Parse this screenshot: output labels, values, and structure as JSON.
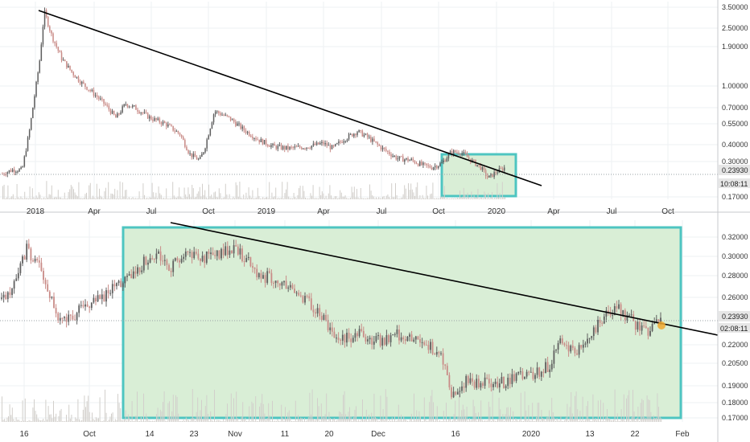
{
  "colors": {
    "background": "#ffffff",
    "grid": "#eef0f3",
    "up_candle": "#5f5f5f",
    "down_candle": "#c98b87",
    "trendline": "#000000",
    "box_border": "#4ec5c1",
    "box_fill": "#d9eed6",
    "volume": "#d2cfcb",
    "price_line": "#9aa0a6",
    "marker": "#f0a830",
    "separator": "#c7c9cc"
  },
  "chart_data": [
    {
      "panel": "top",
      "type": "candlestick",
      "scale": "log",
      "x_ticks": [
        "2018",
        "Apr",
        "Jul",
        "Oct",
        "2019",
        "Apr",
        "Jul",
        "Oct",
        "2020",
        "Apr",
        "Jul",
        "Oct"
      ],
      "y_ticks": [
        "3.50000",
        "2.50000",
        "1.90000",
        "1.00000",
        "0.70000",
        "0.55000",
        "0.40000",
        "0.30000",
        "0.17000"
      ],
      "ylim": [
        0.14,
        3.8
      ],
      "current_price": "0.23930",
      "countdown": "10:08:11",
      "price_path": [
        [
          0.0,
          0.215
        ],
        [
          0.02,
          0.23
        ],
        [
          0.04,
          0.23
        ],
        [
          0.055,
          0.45
        ],
        [
          0.075,
          1.4
        ],
        [
          0.085,
          3.3
        ],
        [
          0.1,
          2.2
        ],
        [
          0.12,
          1.5
        ],
        [
          0.14,
          1.2
        ],
        [
          0.16,
          1.0
        ],
        [
          0.19,
          0.8
        ],
        [
          0.21,
          0.68
        ],
        [
          0.23,
          0.55
        ],
        [
          0.25,
          0.7
        ],
        [
          0.27,
          0.65
        ],
        [
          0.3,
          0.55
        ],
        [
          0.33,
          0.5
        ],
        [
          0.36,
          0.42
        ],
        [
          0.38,
          0.3
        ],
        [
          0.4,
          0.27
        ],
        [
          0.41,
          0.33
        ],
        [
          0.43,
          0.62
        ],
        [
          0.46,
          0.55
        ],
        [
          0.49,
          0.45
        ],
        [
          0.52,
          0.38
        ],
        [
          0.55,
          0.34
        ],
        [
          0.58,
          0.33
        ],
        [
          0.62,
          0.34
        ],
        [
          0.65,
          0.36
        ],
        [
          0.67,
          0.33
        ],
        [
          0.69,
          0.38
        ],
        [
          0.72,
          0.44
        ],
        [
          0.74,
          0.4
        ],
        [
          0.77,
          0.33
        ],
        [
          0.8,
          0.28
        ],
        [
          0.83,
          0.27
        ],
        [
          0.85,
          0.25
        ],
        [
          0.87,
          0.24
        ],
        [
          0.89,
          0.255
        ],
        [
          0.91,
          0.31
        ],
        [
          0.93,
          0.31
        ],
        [
          0.95,
          0.27
        ],
        [
          0.97,
          0.24
        ],
        [
          0.985,
          0.2
        ],
        [
          1.0,
          0.22
        ],
        [
          1.02,
          0.24
        ]
      ],
      "trendline": {
        "from": [
          "2018",
          3.3
        ],
        "to": [
          "2020",
          0.16
        ]
      },
      "zoom_box_label": ""
    },
    {
      "panel": "bottom",
      "type": "candlestick",
      "scale": "log",
      "x_ticks": [
        "16",
        "Oct",
        "14",
        "23",
        "Nov",
        "11",
        "20",
        "Dec",
        "16",
        "2020",
        "13",
        "22",
        "Feb"
      ],
      "y_ticks": [
        "0.32000",
        "0.30000",
        "0.28000",
        "0.26000",
        "0.22000",
        "0.20500",
        "0.19000",
        "0.18000",
        "0.17000"
      ],
      "ylim": [
        0.165,
        0.335
      ],
      "current_price": "0.23930",
      "countdown": "02:08:11",
      "price_path": [
        [
          0.0,
          0.255
        ],
        [
          0.02,
          0.27
        ],
        [
          0.035,
          0.305
        ],
        [
          0.05,
          0.29
        ],
        [
          0.065,
          0.265
        ],
        [
          0.08,
          0.235
        ],
        [
          0.1,
          0.24
        ],
        [
          0.12,
          0.25
        ],
        [
          0.14,
          0.255
        ],
        [
          0.16,
          0.27
        ],
        [
          0.18,
          0.275
        ],
        [
          0.2,
          0.29
        ],
        [
          0.22,
          0.3
        ],
        [
          0.24,
          0.285
        ],
        [
          0.26,
          0.3
        ],
        [
          0.29,
          0.295
        ],
        [
          0.31,
          0.3
        ],
        [
          0.33,
          0.305
        ],
        [
          0.36,
          0.28
        ],
        [
          0.39,
          0.27
        ],
        [
          0.42,
          0.26
        ],
        [
          0.45,
          0.24
        ],
        [
          0.47,
          0.22
        ],
        [
          0.5,
          0.225
        ],
        [
          0.53,
          0.22
        ],
        [
          0.56,
          0.225
        ],
        [
          0.59,
          0.22
        ],
        [
          0.62,
          0.21
        ],
        [
          0.635,
          0.18
        ],
        [
          0.65,
          0.19
        ],
        [
          0.68,
          0.19
        ],
        [
          0.71,
          0.19
        ],
        [
          0.74,
          0.195
        ],
        [
          0.77,
          0.2
        ],
        [
          0.79,
          0.22
        ],
        [
          0.81,
          0.21
        ],
        [
          0.83,
          0.225
        ],
        [
          0.85,
          0.24
        ],
        [
          0.87,
          0.245
        ],
        [
          0.89,
          0.235
        ],
        [
          0.91,
          0.225
        ],
        [
          0.93,
          0.24
        ]
      ],
      "trendline": {
        "from": [
          "14",
          0.332
        ],
        "to": [
          "Feb",
          0.232
        ]
      },
      "zoom_box_label": ""
    }
  ]
}
